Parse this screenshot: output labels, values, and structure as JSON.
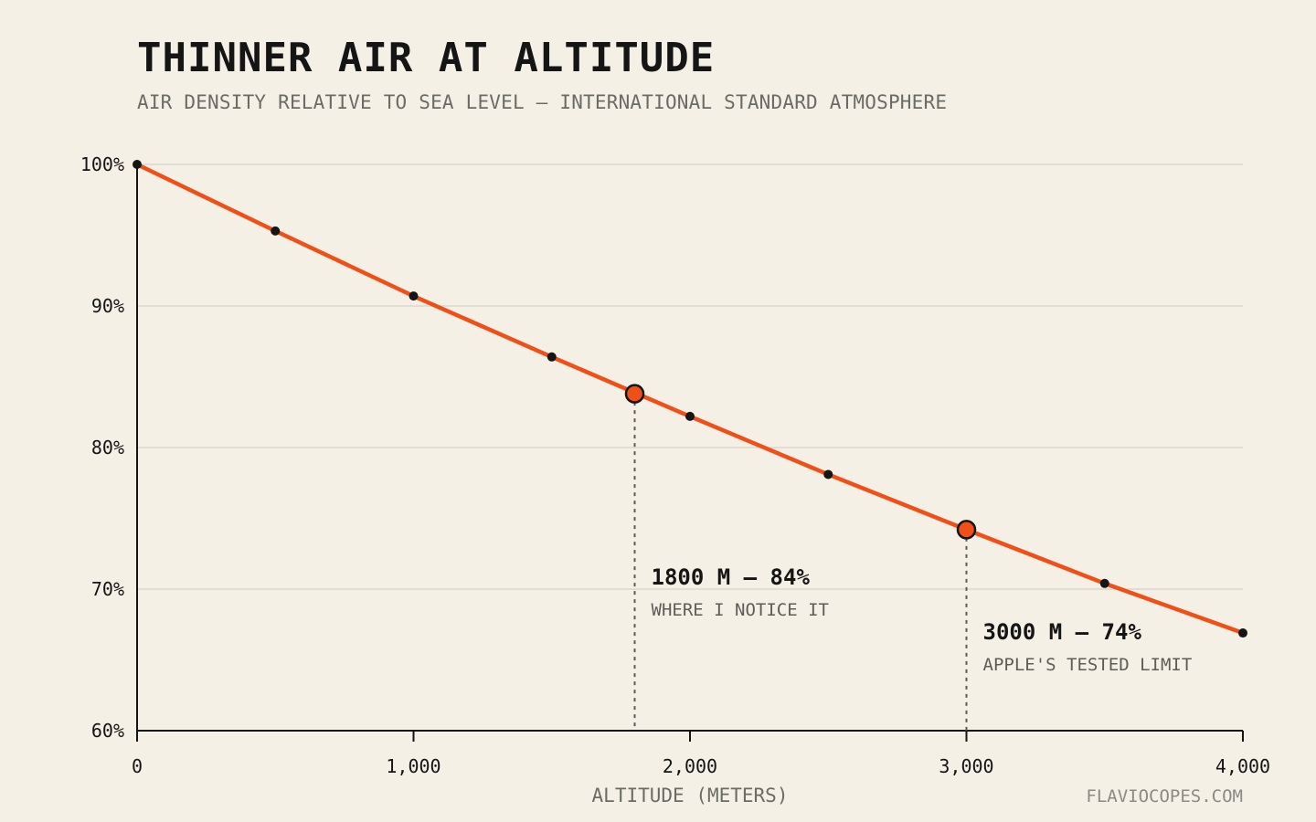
{
  "chart_data": {
    "type": "line",
    "title": "THINNER AIR AT ALTITUDE",
    "subtitle": "AIR DENSITY RELATIVE TO SEA LEVEL — INTERNATIONAL STANDARD ATMOSPHERE",
    "xlabel": "ALTITUDE (METERS)",
    "ylabel": "",
    "xlim": [
      0,
      4000
    ],
    "ylim": [
      60,
      100
    ],
    "x_ticks": [
      0,
      1000,
      2000,
      3000,
      4000
    ],
    "x_tick_labels": [
      "0",
      "1,000",
      "2,000",
      "3,000",
      "4,000"
    ],
    "y_ticks": [
      60,
      70,
      80,
      90,
      100
    ],
    "y_tick_labels": [
      "60%",
      "70%",
      "80%",
      "90%",
      "100%"
    ],
    "grid": "horizontal",
    "series": [
      {
        "x": [
          0,
          500,
          1000,
          1500,
          2000,
          2500,
          3000,
          3500,
          4000
        ],
        "y": [
          100,
          95.3,
          90.7,
          86.4,
          82.2,
          78.1,
          74.2,
          70.4,
          66.9
        ],
        "color": "#f05018"
      }
    ],
    "highlights": [
      {
        "x": 1800,
        "y": 83.8,
        "label": "1800 M — 84%",
        "sublabel": "WHERE I NOTICE IT"
      },
      {
        "x": 3000,
        "y": 74.2,
        "label": "3000 M — 74%",
        "sublabel": "APPLE'S TESTED LIMIT"
      }
    ],
    "source": "FLAVIOCOPES.COM"
  },
  "colors": {
    "background": "#f5f0e6",
    "line": "#f05018",
    "point": "#151515",
    "grid": "#dcd8ce",
    "axis": "#151515",
    "muted_text": "#6b6b66"
  }
}
